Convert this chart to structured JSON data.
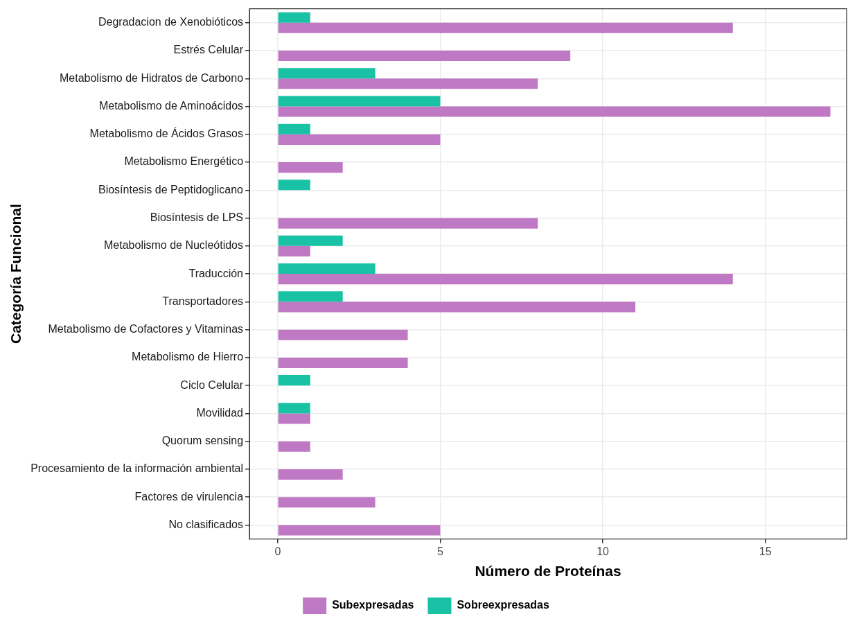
{
  "chart_data": {
    "type": "bar",
    "orientation": "horizontal",
    "categories": [
      "Degradacion de Xenobióticos",
      "Estrés Celular",
      "Metabolismo de Hidratos de Carbono",
      "Metabolismo de Aminoácidos",
      "Metabolismo de Ácidos Grasos",
      "Metabolismo Energético",
      "Biosíntesis de Peptidoglicano",
      "Biosíntesis de LPS",
      "Metabolismo de Nucleótidos",
      "Traducción",
      "Transportadores",
      "Metabolismo de Cofactores y Vitaminas",
      "Metabolismo de Hierro",
      "Ciclo Celular",
      "Movilidad",
      "Quorum sensing",
      "Procesamiento de la información ambiental",
      "Factores de virulencia",
      "No clasificados"
    ],
    "series": [
      {
        "name": "Subexpresadas",
        "color": "#bf78c4",
        "values": [
          14,
          9,
          8,
          17,
          5,
          2,
          null,
          8,
          1,
          14,
          11,
          4,
          4,
          null,
          1,
          1,
          2,
          3,
          5
        ]
      },
      {
        "name": "Sobreexpresadas",
        "color": "#19c2a4",
        "values": [
          1,
          null,
          3,
          5,
          1,
          null,
          1,
          null,
          2,
          3,
          2,
          null,
          null,
          1,
          1,
          null,
          null,
          null,
          null
        ]
      }
    ],
    "xlim": [
      -0.87,
      17.5
    ],
    "xticks": [
      0,
      5,
      10,
      15
    ],
    "xlabel": "Número de Proteínas",
    "ylabel": "Categoría Funcional",
    "grid": true,
    "legend": "bottom"
  }
}
